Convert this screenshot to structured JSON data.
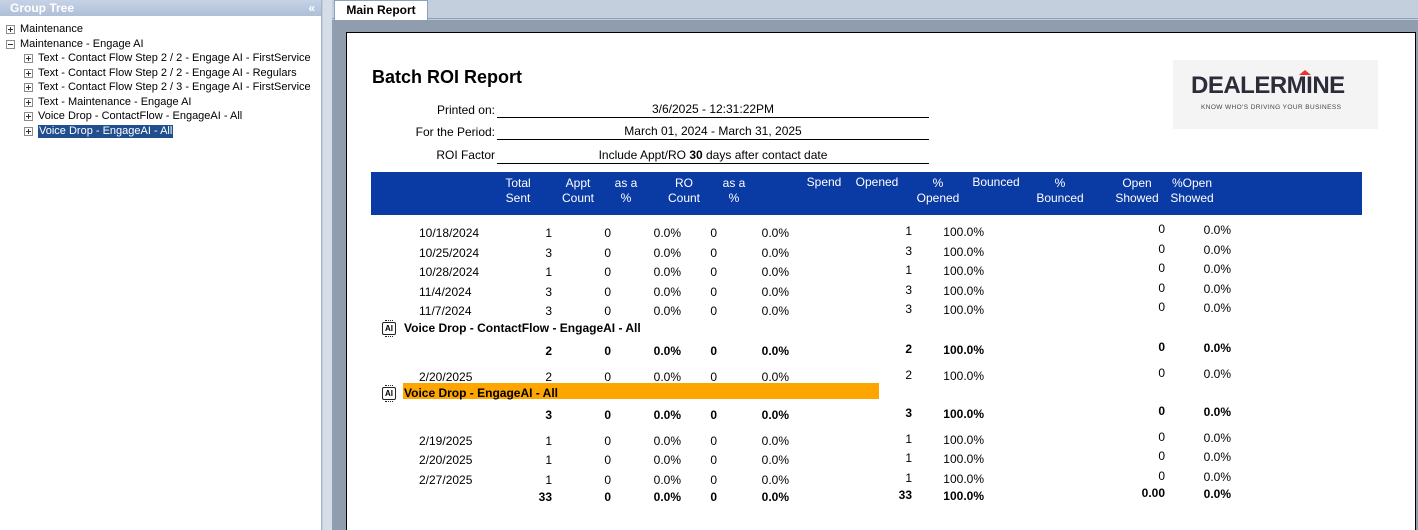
{
  "tree": {
    "header": "Group Tree",
    "collapse_glyph": "«",
    "nodes": [
      {
        "label": "Maintenance",
        "level": 0,
        "expanded": false,
        "selected": false
      },
      {
        "label": "Maintenance - Engage AI",
        "level": 0,
        "expanded": true,
        "selected": false
      },
      {
        "label": "Text - Contact Flow Step 2 / 2 - Engage AI - FirstService",
        "level": 1,
        "expanded": false,
        "selected": false
      },
      {
        "label": "Text - Contact Flow Step 2 / 2 - Engage AI - Regulars",
        "level": 1,
        "expanded": false,
        "selected": false
      },
      {
        "label": "Text - Contact Flow Step 2 / 3 - Engage AI - FirstService",
        "level": 1,
        "expanded": false,
        "selected": false
      },
      {
        "label": "Text - Maintenance - Engage AI",
        "level": 1,
        "expanded": false,
        "selected": false
      },
      {
        "label": "Voice Drop - ContactFlow - EngageAI - All",
        "level": 1,
        "expanded": false,
        "selected": false
      },
      {
        "label": "Voice Drop - EngageAI - All",
        "level": 1,
        "expanded": false,
        "selected": true
      }
    ]
  },
  "tabs": [
    {
      "label": "Main Report",
      "active": true
    }
  ],
  "report": {
    "title": "Batch ROI Report",
    "printed_on_label": "Printed on:",
    "printed_on": "3/6/2025 - 12:31:22PM",
    "period_label": "For the Period:",
    "period": "March 01, 2024 - March 31, 2025",
    "roi_label": "ROI Factor",
    "roi_prefix": "Include Appt/RO ",
    "roi_days": "30",
    "roi_suffix": " days after contact date",
    "logo_text": "DEALERMINE",
    "logo_tagline": "KNOW WHO'S DRIVING YOUR BUSINESS",
    "columns": [
      {
        "l1": "Total",
        "l2": "Sent"
      },
      {
        "l1": "Appt",
        "l2": "Count"
      },
      {
        "l1": "as a",
        "l2": "%"
      },
      {
        "l1": "RO",
        "l2": "Count"
      },
      {
        "l1": "as a",
        "l2": "%"
      },
      {
        "l1": "Spend",
        "l2": ""
      },
      {
        "l1": "Opened",
        "l2": ""
      },
      {
        "l1": "%",
        "l2": "Opened"
      },
      {
        "l1": "Bounced",
        "l2": ""
      },
      {
        "l1": "%",
        "l2": "Bounced"
      },
      {
        "l1": "Open",
        "l2": "Showed"
      },
      {
        "l1": "%Open",
        "l2": "Showed"
      }
    ],
    "rows_a": [
      {
        "date": "10/18/2024",
        "sent": "1",
        "appt": "0",
        "appt_pct": "0.0%",
        "ro": "0",
        "ro_pct": "0.0%",
        "opened": "1",
        "opened_pct": "100.0%",
        "open_showed": "0",
        "open_showed_pct": "0.0%"
      },
      {
        "date": "10/25/2024",
        "sent": "3",
        "appt": "0",
        "appt_pct": "0.0%",
        "ro": "0",
        "ro_pct": "0.0%",
        "opened": "3",
        "opened_pct": "100.0%",
        "open_showed": "0",
        "open_showed_pct": "0.0%"
      },
      {
        "date": "10/28/2024",
        "sent": "1",
        "appt": "0",
        "appt_pct": "0.0%",
        "ro": "0",
        "ro_pct": "0.0%",
        "opened": "1",
        "opened_pct": "100.0%",
        "open_showed": "0",
        "open_showed_pct": "0.0%"
      },
      {
        "date": "11/4/2024",
        "sent": "3",
        "appt": "0",
        "appt_pct": "0.0%",
        "ro": "0",
        "ro_pct": "0.0%",
        "opened": "3",
        "opened_pct": "100.0%",
        "open_showed": "0",
        "open_showed_pct": "0.0%"
      },
      {
        "date": "11/7/2024",
        "sent": "3",
        "appt": "0",
        "appt_pct": "0.0%",
        "ro": "0",
        "ro_pct": "0.0%",
        "opened": "3",
        "opened_pct": "100.0%",
        "open_showed": "0",
        "open_showed_pct": "0.0%"
      }
    ],
    "group1": {
      "label": "Voice Drop - ContactFlow -  EngageAI  - All",
      "icon_text": "AI",
      "total": {
        "sent": "2",
        "appt": "0",
        "appt_pct": "0.0%",
        "ro": "0",
        "ro_pct": "0.0%",
        "opened": "2",
        "opened_pct": "100.0%",
        "open_showed": "0",
        "open_showed_pct": "0.0%"
      },
      "row": {
        "date": "2/20/2025",
        "sent": "2",
        "appt": "0",
        "appt_pct": "0.0%",
        "ro": "0",
        "ro_pct": "0.0%",
        "opened": "2",
        "opened_pct": "100.0%",
        "open_showed": "0",
        "open_showed_pct": "0.0%"
      }
    },
    "group2": {
      "label": "Voice Drop - EngageAI - All",
      "icon_text": "AI",
      "highlight_color": "#ffa500",
      "total": {
        "sent": "3",
        "appt": "0",
        "appt_pct": "0.0%",
        "ro": "0",
        "ro_pct": "0.0%",
        "opened": "3",
        "opened_pct": "100.0%",
        "open_showed": "0",
        "open_showed_pct": "0.0%"
      },
      "rows": [
        {
          "date": "2/19/2025",
          "sent": "1",
          "appt": "0",
          "appt_pct": "0.0%",
          "ro": "0",
          "ro_pct": "0.0%",
          "opened": "1",
          "opened_pct": "100.0%",
          "open_showed": "0",
          "open_showed_pct": "0.0%"
        },
        {
          "date": "2/20/2025",
          "sent": "1",
          "appt": "0",
          "appt_pct": "0.0%",
          "ro": "0",
          "ro_pct": "0.0%",
          "opened": "1",
          "opened_pct": "100.0%",
          "open_showed": "0",
          "open_showed_pct": "0.0%"
        },
        {
          "date": "2/27/2025",
          "sent": "1",
          "appt": "0",
          "appt_pct": "0.0%",
          "ro": "0",
          "ro_pct": "0.0%",
          "opened": "1",
          "opened_pct": "100.0%",
          "open_showed": "0",
          "open_showed_pct": "0.0%"
        }
      ]
    },
    "grand_total": {
      "sent": "33",
      "appt": "0",
      "appt_pct": "0.0%",
      "ro": "0",
      "ro_pct": "0.0%",
      "opened": "33",
      "opened_pct": "100.0%",
      "open_showed": "0.00",
      "open_showed_pct": "0.0%"
    },
    "header_color": "#0a3aa3"
  }
}
